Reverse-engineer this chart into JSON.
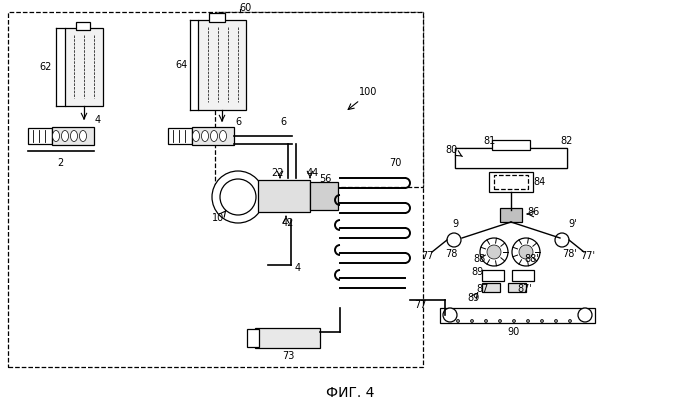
{
  "title": "ФИГ. 4",
  "bg_color": "#ffffff",
  "line_color": "#000000",
  "label_fontsize": 7,
  "title_fontsize": 10
}
